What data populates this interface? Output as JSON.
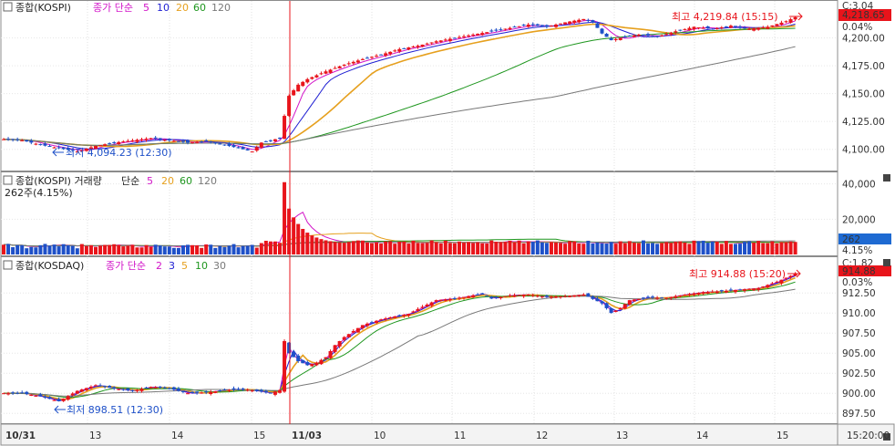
{
  "colors": {
    "up": "#e8141b",
    "down": "#1e50c8",
    "ma_short": "#d214c8",
    "ma_mid": "#1e1ed2",
    "ma_long": "#e6a01e",
    "ma_60": "#1e961e",
    "ma_120": "#787878",
    "vol_ma5": "#d214c8",
    "vol_ma20": "#e6a01e",
    "vol_ma60": "#1e961e",
    "session_line": "#e8141b",
    "badge_red": "#e8141b",
    "badge_blue": "#1e6ad2"
  },
  "panels": {
    "kospi": {
      "name": "종합(KOSPI)",
      "legend": {
        "title": "종가 단순",
        "periods": [
          "5",
          "10",
          "20",
          "60",
          "120"
        ]
      },
      "max_annotation": "최고 4,219.84 (15:15)",
      "min_annotation": "최저 4,094.23 (12:30)",
      "current_price": "4,218.65",
      "change_label": "C:3.04",
      "pct_label": "0.04%",
      "y_ticks": [
        "4,200.00",
        "4,175.00",
        "4,150.00",
        "4,125.00",
        "4,100.00"
      ]
    },
    "volume": {
      "name": "종합(KOSPI) 거래량",
      "legend": {
        "title": "단순",
        "periods": [
          "5",
          "20",
          "60",
          "120"
        ]
      },
      "current_label": "262주(4.15%)",
      "current_value": "262",
      "pct_label": "4.15%",
      "y_ticks": [
        "40,000",
        "20,000"
      ]
    },
    "kosdaq": {
      "name": "종합(KOSDAQ)",
      "legend": {
        "title": "종가 단순",
        "periods": [
          "2",
          "3",
          "5",
          "10",
          "30"
        ]
      },
      "max_annotation": "최고 914.88 (15:20)",
      "min_annotation": "최저 898.51 (12:30)",
      "current_price": "914.88",
      "change_label": "C:1.82",
      "pct_label": "0.03%",
      "y_ticks": [
        "912.50",
        "910.00",
        "907.50",
        "905.00",
        "902.50",
        "900.00",
        "897.50"
      ]
    }
  },
  "x_axis": {
    "labels": [
      "10/31",
      "13",
      "14",
      "15",
      "11/03",
      "10",
      "11",
      "12",
      "13",
      "14",
      "15"
    ],
    "current_time": "15:20:00"
  },
  "chart_data": [
    {
      "type": "candlestick",
      "title": "종합(KOSPI)",
      "ylim": [
        4085,
        4230
      ],
      "x_labels": [
        "10/31 12:00",
        "13",
        "14",
        "15",
        "11/03 09:00",
        "10",
        "11",
        "12",
        "13",
        "14",
        "15"
      ],
      "close_path": [
        [
          0,
          4109
        ],
        [
          4,
          4108
        ],
        [
          8,
          4104
        ],
        [
          12,
          4101
        ],
        [
          16,
          4098
        ],
        [
          20,
          4103
        ],
        [
          24,
          4106
        ],
        [
          28,
          4108
        ],
        [
          32,
          4110
        ],
        [
          36,
          4108
        ],
        [
          40,
          4106
        ],
        [
          44,
          4107
        ],
        [
          48,
          4104
        ],
        [
          52,
          4100
        ],
        [
          54,
          4098
        ],
        [
          56,
          4106
        ],
        [
          58,
          4108
        ],
        [
          60,
          4110
        ],
        [
          61,
          4130
        ],
        [
          62,
          4148
        ],
        [
          64,
          4158
        ],
        [
          66,
          4163
        ],
        [
          70,
          4170
        ],
        [
          74,
          4176
        ],
        [
          78,
          4181
        ],
        [
          82,
          4185
        ],
        [
          86,
          4190
        ],
        [
          90,
          4193
        ],
        [
          94,
          4197
        ],
        [
          98,
          4200
        ],
        [
          102,
          4203
        ],
        [
          106,
          4206
        ],
        [
          110,
          4209
        ],
        [
          114,
          4212
        ],
        [
          118,
          4210
        ],
        [
          122,
          4214
        ],
        [
          126,
          4217
        ],
        [
          128,
          4214
        ],
        [
          130,
          4204
        ],
        [
          132,
          4198
        ],
        [
          134,
          4200
        ],
        [
          138,
          4203
        ],
        [
          142,
          4201
        ],
        [
          146,
          4206
        ],
        [
          150,
          4210
        ],
        [
          154,
          4208
        ],
        [
          158,
          4211
        ],
        [
          162,
          4208
        ],
        [
          166,
          4210
        ],
        [
          170,
          4215
        ],
        [
          172,
          4218.65
        ]
      ],
      "ma_series": [
        "5",
        "10",
        "20",
        "60",
        "120"
      ],
      "high": 4219.84,
      "low": 4094.23
    },
    {
      "type": "bar",
      "title": "종합(KOSPI) 거래량",
      "ylim": [
        0,
        45000
      ],
      "spike_value": 41000,
      "typical_value": 6000,
      "current_value": 262
    },
    {
      "type": "candlestick",
      "title": "종합(KOSDAQ)",
      "ylim": [
        896.5,
        916.5
      ],
      "close_path": [
        [
          0,
          900.0
        ],
        [
          4,
          900.0
        ],
        [
          8,
          899.6
        ],
        [
          12,
          899.0
        ],
        [
          16,
          900.3
        ],
        [
          20,
          901.0
        ],
        [
          24,
          900.6
        ],
        [
          28,
          900.3
        ],
        [
          32,
          900.8
        ],
        [
          36,
          900.6
        ],
        [
          40,
          900.0
        ],
        [
          44,
          900.1
        ],
        [
          48,
          900.4
        ],
        [
          52,
          900.5
        ],
        [
          56,
          900.2
        ],
        [
          58,
          900.0
        ],
        [
          60,
          900.4
        ],
        [
          61,
          906.5
        ],
        [
          62,
          905.0
        ],
        [
          64,
          904.0
        ],
        [
          66,
          903.5
        ],
        [
          68,
          903.8
        ],
        [
          70,
          904.5
        ],
        [
          72,
          906.0
        ],
        [
          74,
          907.0
        ],
        [
          78,
          908.5
        ],
        [
          82,
          909.2
        ],
        [
          86,
          909.7
        ],
        [
          88,
          909.9
        ],
        [
          90,
          910.5
        ],
        [
          94,
          911.6
        ],
        [
          98,
          911.8
        ],
        [
          102,
          912.2
        ],
        [
          104,
          912.4
        ],
        [
          106,
          911.8
        ],
        [
          110,
          912.2
        ],
        [
          114,
          912.3
        ],
        [
          118,
          912.0
        ],
        [
          122,
          912.1
        ],
        [
          126,
          912.3
        ],
        [
          130,
          911.2
        ],
        [
          132,
          910.0
        ],
        [
          134,
          910.6
        ],
        [
          136,
          911.6
        ],
        [
          140,
          911.9
        ],
        [
          144,
          911.9
        ],
        [
          148,
          912.3
        ],
        [
          152,
          912.6
        ],
        [
          156,
          912.7
        ],
        [
          160,
          912.9
        ],
        [
          164,
          913.1
        ],
        [
          168,
          913.9
        ],
        [
          172,
          914.88
        ]
      ],
      "ma_series": [
        "2",
        "3",
        "5",
        "10",
        "30"
      ],
      "high": 914.88,
      "low": 898.51
    }
  ]
}
